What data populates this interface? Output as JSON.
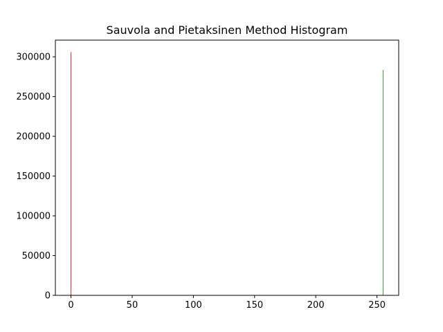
{
  "chart_data": {
    "type": "bar",
    "title": "Sauvola and Pietaksinen Method Histogram",
    "xlabel": "",
    "ylabel": "",
    "xlim": [
      -12.75,
      267.75
    ],
    "ylim": [
      0,
      321000
    ],
    "xticks": [
      0,
      50,
      100,
      150,
      200,
      250
    ],
    "yticks": [
      0,
      50000,
      100000,
      150000,
      200000,
      250000,
      300000
    ],
    "grid": false,
    "series": [
      {
        "x": [
          0
        ],
        "values": [
          306000
        ],
        "color": "#d62728"
      },
      {
        "x": [
          255
        ],
        "values": [
          283500
        ],
        "color": "#2ca02c"
      }
    ]
  }
}
